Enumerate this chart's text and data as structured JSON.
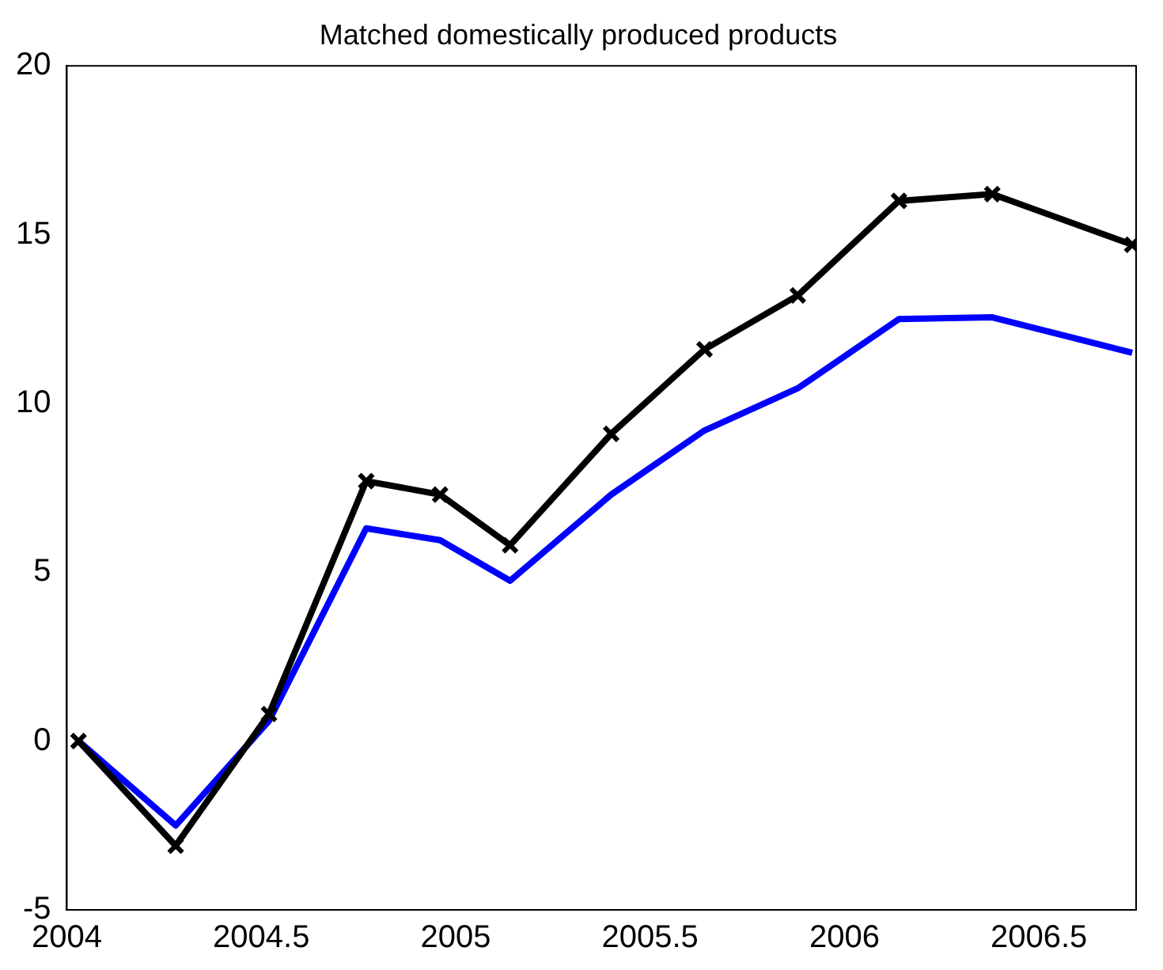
{
  "chart_data": {
    "type": "line",
    "title": "Matched domestically produced products",
    "x": [
      2004.03,
      2004.28,
      2004.52,
      2004.77,
      2004.96,
      2005.14,
      2005.4,
      2005.64,
      2005.88,
      2006.14,
      2006.38,
      2006.74
    ],
    "series": [
      {
        "color": "#0000ff",
        "marker": "none",
        "values": [
          0,
          -2.5,
          0.6,
          6.3,
          5.95,
          4.75,
          7.3,
          9.2,
          10.45,
          12.5,
          12.55,
          11.5
        ]
      },
      {
        "color": "#000000",
        "marker": "cross",
        "values": [
          0,
          -3.1,
          0.8,
          7.7,
          7.3,
          5.8,
          9.1,
          11.6,
          13.2,
          16.0,
          16.2,
          14.7
        ]
      }
    ],
    "xlim": [
      2004,
      2006.75
    ],
    "xticks": [
      2004,
      2004.5,
      2005,
      2005.5,
      2006,
      2006.5
    ],
    "ylim": [
      -5,
      20
    ],
    "yticks": [
      -5,
      0,
      5,
      10,
      15,
      20
    ],
    "grid": false,
    "legend": false,
    "line_style": "solid"
  }
}
